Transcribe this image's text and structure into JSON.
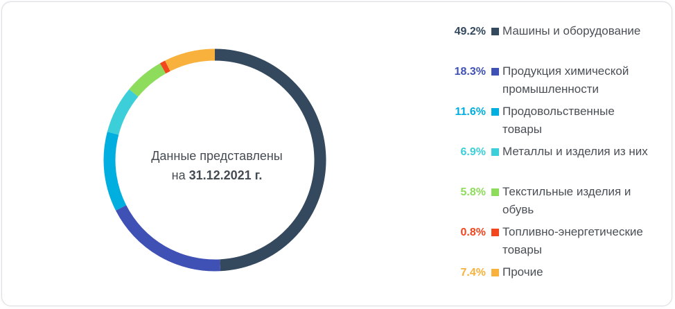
{
  "center": {
    "line1": "Данные представлены",
    "prefix": "на ",
    "date": "31.12.2021 г."
  },
  "chart_data": {
    "type": "pie",
    "variant": "donut",
    "categories": [
      "Машины и оборудование",
      "Продукция химической промышленности",
      "Продовольственные товары",
      "Металлы и изделия из них",
      "Текстильные изделия и обувь",
      "Топливно-энергетические товары",
      "Прочие"
    ],
    "values": [
      49.2,
      18.3,
      11.6,
      6.9,
      5.8,
      0.8,
      7.4
    ],
    "labels": [
      "49.2%",
      "18.3%",
      "11.6%",
      "6.9%",
      "5.8%",
      "0.8%",
      "7.4%"
    ],
    "colors": [
      "#34495e",
      "#3f51b5",
      "#00aee0",
      "#3dcfd9",
      "#8edc5b",
      "#f1461e",
      "#f8b13c"
    ],
    "legend_position": "right",
    "start": "top",
    "direction": "clockwise"
  }
}
